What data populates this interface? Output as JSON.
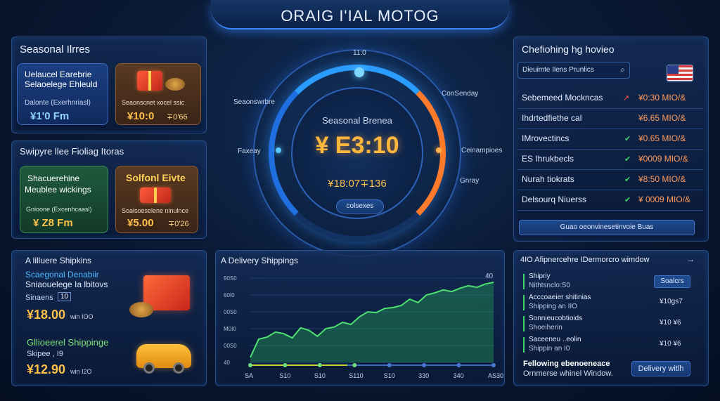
{
  "header": {
    "title": "ORAIG I'IAL MOTOG"
  },
  "seasonal_panel": {
    "title": "Seasonal Ilrres",
    "card1": {
      "line1": "Uelaucel Earebrie",
      "line2": "Selaoelege Ehleuld",
      "sub": "Dalonte (Exerhnriasl)",
      "price": "¥1'0 Fm"
    },
    "card2": {
      "label": "Seaonscnet xocel ssic",
      "price": "¥10:0",
      "suffix": "∓0'66"
    }
  },
  "surprise_panel": {
    "title": "Swipyre llee Fioliag Itoras",
    "card1": {
      "line1": "Shacuerehine",
      "line2": "Meublee wickings",
      "sub": "Gnioone (Excenhcaasl)",
      "price": "¥ Z8 Fm"
    },
    "card2": {
      "title": "Solfonl Eivte",
      "label": "Soalsoeselene ninulnce",
      "price": "¥5.00",
      "suffix": "∓0'26"
    }
  },
  "dial": {
    "top_label": "11:0",
    "center_label": "Seasonal Brenea",
    "main_value": "¥ E3:10",
    "sub_value": "¥18:07∓136",
    "button": "colsexes",
    "left_top": "Seaonswrbre",
    "left_mid": "Faxeay",
    "right_top": "ConSenday",
    "right_mid": "Ceinampioes",
    "right_low": "Gnray"
  },
  "checkout_panel": {
    "title": "Chefiohing hg hovieo",
    "search_placeholder": "Dieuimte Ilens Prunlics",
    "rows": [
      {
        "name": "Sebemeed Mockncas",
        "status": "arrow",
        "price": "¥0:30 MIO/&"
      },
      {
        "name": "Ihdrtedfiethe cal",
        "status": "none",
        "price": "¥6.65 MIO/&"
      },
      {
        "name": "IMrovectincs",
        "status": "check",
        "price": "¥0.65 MIO/&"
      },
      {
        "name": "ES Ihrukbecls",
        "status": "check",
        "price": "¥0009 MIO/&"
      },
      {
        "name": "Nurah tiokrats",
        "status": "check",
        "price": "¥8:50 MIO/&"
      },
      {
        "name": "Delsourq Niuerss",
        "status": "check",
        "price": "¥ 0009 MIO/&"
      }
    ],
    "footer_button": "Guao oeonvinesetinvoie Buas"
  },
  "shipping_panel": {
    "title": "A lilluere Shipkins",
    "item1": {
      "line1": "Scaegonal Denabiir",
      "line2": "Sniaouelege Ia lbitovs",
      "sub": "Sinaens",
      "badge": "10",
      "price": "¥18.00",
      "note": "win IOO"
    },
    "item2": {
      "line1": "Gllioeerel Shippinge",
      "sub": "Skipee , I9",
      "price": "¥12.90",
      "note": "win I2O"
    }
  },
  "delivery_chart_panel": {
    "title": "A Delivery Shippings",
    "right_label": "40"
  },
  "chart_data": {
    "type": "area",
    "title": "A Delivery Shippings",
    "x_ticks": [
      "SA",
      "S10",
      "S10",
      "S110",
      "S10",
      "330",
      "340",
      "AS30"
    ],
    "y_ticks": [
      "90S0",
      "60I0",
      "00S0",
      "M0I0",
      "00S0",
      "40"
    ],
    "values": [
      12,
      55,
      60,
      72,
      68,
      58,
      82,
      76,
      62,
      80,
      84,
      95,
      90,
      108,
      120,
      118,
      128,
      130,
      135,
      150,
      142,
      160,
      165,
      172,
      168,
      176,
      182,
      178,
      186,
      190
    ]
  },
  "window_panel": {
    "title": "4IO Afipnercehre IDermorcro wimdow",
    "arrow": "→",
    "items": [
      {
        "line1": "Shipriy",
        "line2": "Nithtsnclo:S0",
        "right": "Soalcrs"
      },
      {
        "line1": "Acccoaeier shitinias",
        "line2": "Shipping an IIO",
        "right": "¥10gs7"
      },
      {
        "line1": "Sonnieucobtioids",
        "line2": "Shoeiherin",
        "right": "¥10 ¥6"
      },
      {
        "line1": "Saceeneu ..eolin",
        "line2": "Shippin an I0",
        "right": "¥10 ¥6"
      }
    ],
    "footer_line1": "Fellowing ebenoeneace",
    "footer_line2": "Ornmerse whinel Window.",
    "footer_button": "Delivery witlh"
  },
  "colors": {
    "accent": "#2b8cff",
    "orange": "#ff8a2a",
    "price": "#ffc14a",
    "green": "#3fd46a"
  }
}
